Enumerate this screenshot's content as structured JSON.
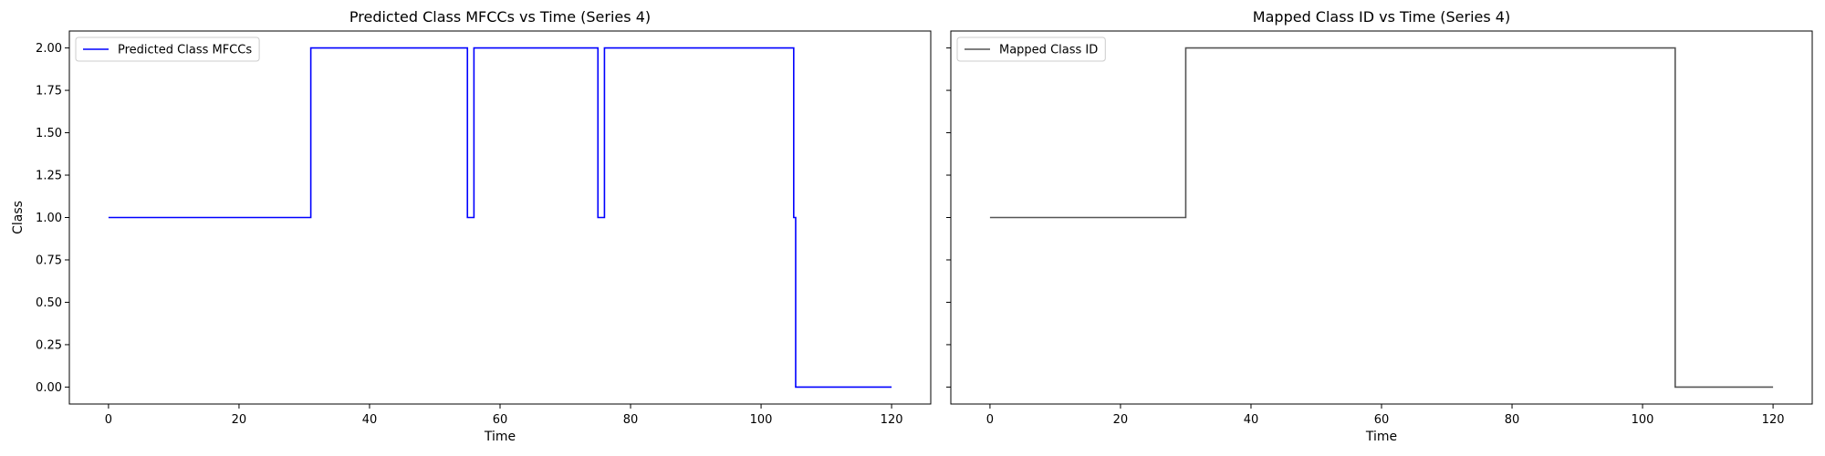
{
  "chart_data": [
    {
      "type": "line",
      "title": "Predicted Class MFCCs vs Time (Series 4)",
      "xlabel": "Time",
      "ylabel": "Class",
      "xlim": [
        -6,
        126
      ],
      "ylim": [
        -0.1,
        2.1
      ],
      "xticks": [
        0,
        20,
        40,
        60,
        80,
        100,
        120
      ],
      "yticks": [
        0.0,
        0.25,
        0.5,
        0.75,
        1.0,
        1.25,
        1.5,
        1.75,
        2.0
      ],
      "ytick_labels": [
        "0.00",
        "0.25",
        "0.50",
        "0.75",
        "1.00",
        "1.25",
        "1.50",
        "1.75",
        "2.00"
      ],
      "grid": false,
      "legend": "upper left",
      "series": [
        {
          "name": "Predicted Class MFCCs",
          "color": "#0000ff",
          "step": true,
          "x": [
            0,
            31,
            55,
            56,
            75,
            76,
            105,
            105.3,
            120
          ],
          "y": [
            1,
            2,
            1,
            2,
            1,
            2,
            1,
            0,
            0
          ]
        }
      ]
    },
    {
      "type": "line",
      "title": "Mapped Class ID vs Time (Series 4)",
      "xlabel": "Time",
      "ylabel": "",
      "xlim": [
        -6,
        126
      ],
      "ylim": [
        -0.1,
        2.1
      ],
      "xticks": [
        0,
        20,
        40,
        60,
        80,
        100,
        120
      ],
      "yticks": [
        0.0,
        0.25,
        0.5,
        0.75,
        1.0,
        1.25,
        1.5,
        1.75,
        2.0
      ],
      "ytick_labels": [],
      "grid": false,
      "legend": "upper left",
      "series": [
        {
          "name": "Mapped Class ID",
          "color": "#555555",
          "step": true,
          "x": [
            0,
            30,
            105,
            120
          ],
          "y": [
            1,
            2,
            0,
            0
          ]
        }
      ]
    }
  ]
}
